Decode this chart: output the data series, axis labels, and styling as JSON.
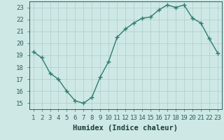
{
  "x": [
    1,
    2,
    3,
    4,
    5,
    6,
    7,
    8,
    9,
    10,
    11,
    12,
    13,
    14,
    15,
    16,
    17,
    18,
    19,
    20,
    21,
    22,
    23
  ],
  "y": [
    19.3,
    18.8,
    17.5,
    17.0,
    16.0,
    15.2,
    15.0,
    15.5,
    17.2,
    18.5,
    20.5,
    21.2,
    21.7,
    22.1,
    22.2,
    22.8,
    23.2,
    23.0,
    23.2,
    22.1,
    21.7,
    20.4,
    19.2
  ],
  "line_color": "#2e7d6e",
  "marker": "+",
  "marker_size": 4,
  "line_width": 1.0,
  "bg_color": "#cde8e5",
  "grid_color": "#b0cccc",
  "tick_color": "#2e5f5f",
  "label_color": "#1a3e3e",
  "xlabel": "Humidex (Indice chaleur)",
  "xlim_min": 0.5,
  "xlim_max": 23.5,
  "ylim_min": 14.5,
  "ylim_max": 23.5,
  "yticks": [
    15,
    16,
    17,
    18,
    19,
    20,
    21,
    22,
    23
  ],
  "xticks": [
    1,
    2,
    3,
    4,
    5,
    6,
    7,
    8,
    9,
    10,
    11,
    12,
    13,
    14,
    15,
    16,
    17,
    18,
    19,
    20,
    21,
    22,
    23
  ],
  "xlabel_fontsize": 7.5,
  "tick_fontsize": 6.5
}
